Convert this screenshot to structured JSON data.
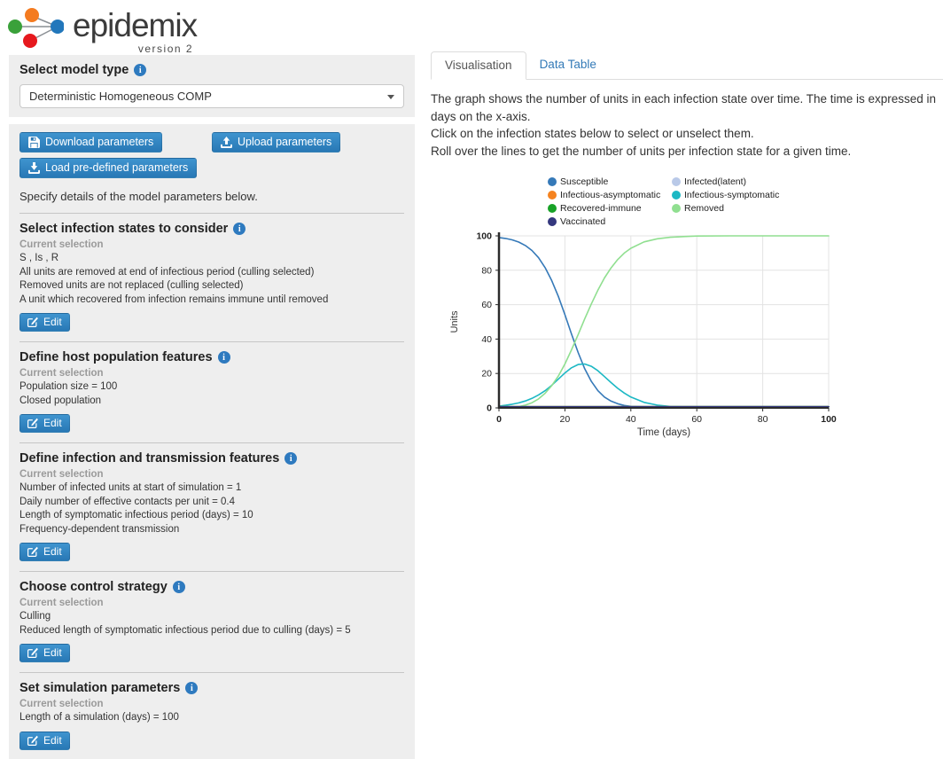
{
  "header": {
    "logo_text": "epidemix",
    "logo_version": "version 2"
  },
  "icons": {
    "info_glyph": "i"
  },
  "sidebar": {
    "model_type_label": "Select model type",
    "model_type_value": "Deterministic Homogeneous COMP",
    "buttons": {
      "download": "Download parameters",
      "upload": "Upload parameters",
      "load_predefined": "Load pre-defined parameters"
    },
    "intro": "Specify details of the model parameters below.",
    "current_selection_label": "Current selection",
    "edit_label": "Edit",
    "sections": [
      {
        "title": "Select infection states to consider",
        "lines": [
          "S , Is , R",
          "All units are removed at end of infectious period (culling selected)",
          "Removed units are not replaced (culling selected)",
          "A unit which recovered from infection remains immune until removed"
        ]
      },
      {
        "title": "Define host population features",
        "lines": [
          "Population size = 100",
          "Closed population"
        ]
      },
      {
        "title": "Define infection and transmission features",
        "lines": [
          "Number of infected units at start of simulation = 1",
          "Daily number of effective contacts per unit = 0.4",
          "Length of symptomatic infectious period (days) = 10",
          "Frequency-dependent transmission"
        ]
      },
      {
        "title": "Choose control strategy",
        "lines": [
          "Culling",
          "Reduced length of symptomatic infectious period due to culling (days) = 5"
        ]
      },
      {
        "title": "Set simulation parameters",
        "lines": [
          "Length of a simulation (days) = 100"
        ]
      }
    ]
  },
  "main": {
    "tabs": [
      {
        "label": "Visualisation",
        "active": true
      },
      {
        "label": "Data Table",
        "active": false
      }
    ],
    "description": [
      "The graph shows the number of units in each infection state over time. The time is expressed in days on the x-axis.",
      "Click on the infection states below to select or unselect them.",
      "Roll over the lines to get the number of units per infection state for a given time."
    ]
  },
  "chart_data": {
    "type": "line",
    "title": "",
    "xlabel": "Time (days)",
    "ylabel": "Units",
    "xlim": [
      0,
      100
    ],
    "ylim": [
      0,
      100
    ],
    "xticks": [
      0,
      20,
      40,
      60,
      80,
      100
    ],
    "yticks": [
      0,
      20,
      40,
      60,
      80,
      100
    ],
    "grid": true,
    "legend_position": "top",
    "x": [
      0,
      2,
      4,
      6,
      8,
      10,
      12,
      14,
      16,
      18,
      20,
      22,
      24,
      26,
      28,
      30,
      32,
      34,
      36,
      38,
      40,
      44,
      48,
      52,
      56,
      60,
      70,
      80,
      90,
      100
    ],
    "series": [
      {
        "name": "Susceptible",
        "color": "#3579b8",
        "values": [
          99,
          98.5,
          97.7,
          96.4,
          94.4,
          91.5,
          87.3,
          81.5,
          74,
          64.8,
          54.2,
          43,
          32.2,
          22.8,
          15.4,
          10,
          6.3,
          3.9,
          2.4,
          1.4,
          0.9,
          0.3,
          0.1,
          0,
          0,
          0,
          0,
          0,
          0,
          0
        ]
      },
      {
        "name": "Infected(latent)",
        "color": "#b9c9e8",
        "constant": 0
      },
      {
        "name": "Infectious-asymptomatic",
        "color": "#f5831f",
        "constant": 0
      },
      {
        "name": "Infectious-symptomatic",
        "color": "#1cb8c4",
        "values": [
          1,
          1.5,
          2.1,
          2.9,
          4,
          5.5,
          7.5,
          10,
          13.1,
          16.7,
          20.3,
          23.3,
          25.2,
          25.5,
          24.2,
          21.6,
          18.2,
          14.7,
          11.4,
          8.6,
          6.3,
          3.2,
          1.6,
          0.8,
          0.4,
          0.1,
          0,
          0,
          0,
          0
        ]
      },
      {
        "name": "Recovered-immune",
        "color": "#18a227",
        "constant": 0
      },
      {
        "name": "Removed",
        "color": "#90df90",
        "values": [
          0,
          0,
          0.2,
          0.7,
          1.6,
          3,
          5.2,
          8.5,
          12.9,
          18.5,
          25.5,
          33.7,
          42.6,
          51.7,
          60.4,
          68.4,
          75.5,
          81.4,
          86.2,
          90,
          92.8,
          96.5,
          98.3,
          99.2,
          99.6,
          99.9,
          100,
          100,
          100,
          100
        ]
      },
      {
        "name": "Vaccinated",
        "color": "#34387e",
        "constant": 0
      }
    ],
    "draw_order": [
      "Susceptible",
      "Infectious-symptomatic",
      "Removed",
      "Infected(latent)",
      "Infectious-asymptomatic",
      "Recovered-immune",
      "Vaccinated"
    ]
  }
}
